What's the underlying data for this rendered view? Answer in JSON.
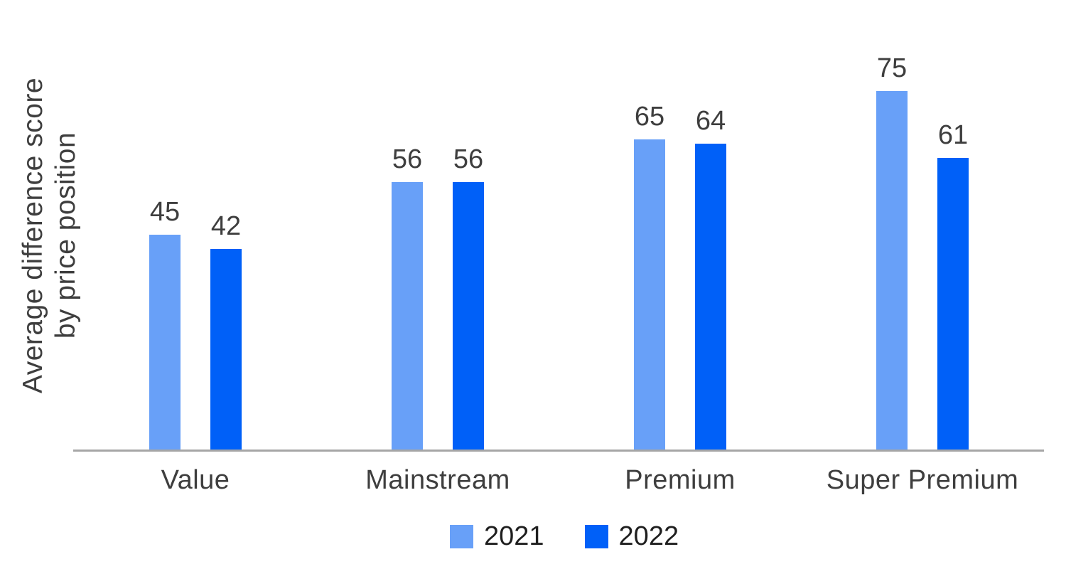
{
  "chart_data": {
    "type": "bar",
    "title": "",
    "ylabel_line1": "Average difference score",
    "ylabel_line2": "by price position",
    "xlabel": "",
    "categories": [
      "Value",
      "Mainstream",
      "Premium",
      "Super Premium"
    ],
    "series": [
      {
        "name": "2021",
        "color": "#68A0F8",
        "values": [
          45,
          56,
          65,
          75
        ]
      },
      {
        "name": "2022",
        "color": "#0060F8",
        "values": [
          42,
          56,
          64,
          61
        ]
      }
    ],
    "data_labels_shown": true,
    "ylim": [
      0,
      80
    ],
    "y_axis_ticks_shown": false,
    "gridlines": false,
    "legend_position": "bottom",
    "baseline_color": "#A6A6A6",
    "label_text_color": "#3E3E3E"
  }
}
